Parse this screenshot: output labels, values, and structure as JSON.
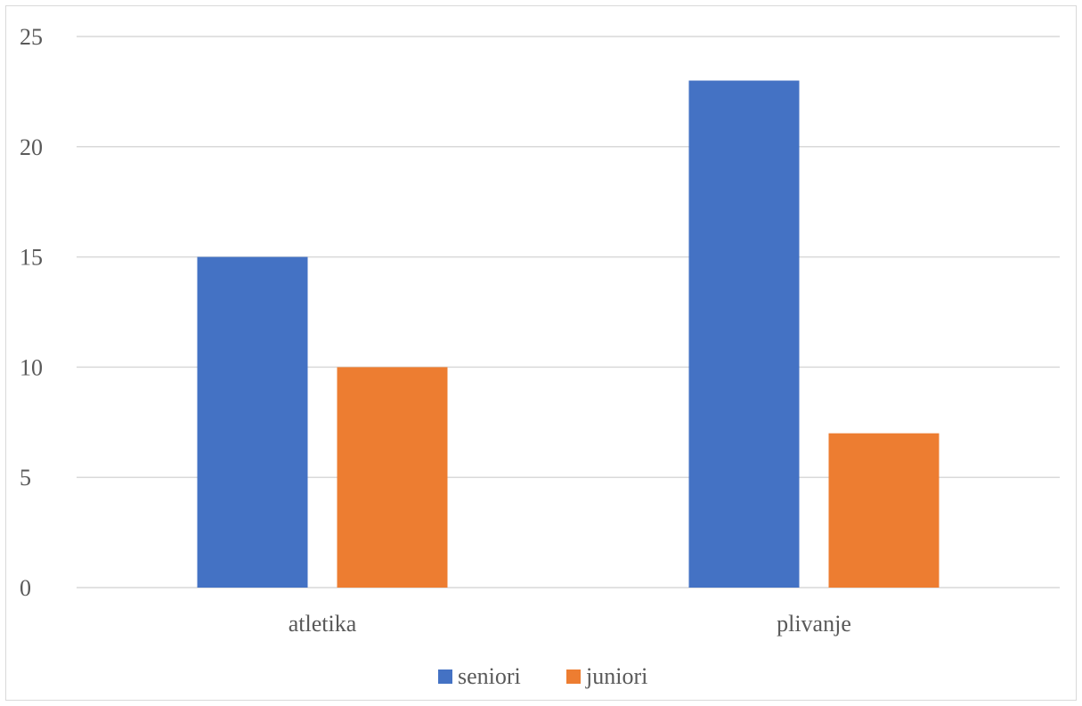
{
  "chart_data": {
    "type": "bar",
    "categories": [
      "atletika",
      "plivanje"
    ],
    "series": [
      {
        "name": "seniori",
        "values": [
          15,
          23
        ],
        "color": "#4472c4"
      },
      {
        "name": "juniori",
        "values": [
          10,
          7
        ],
        "color": "#ed7d31"
      }
    ],
    "ylim": [
      0,
      25
    ],
    "yticks": [
      0,
      5,
      10,
      15,
      20,
      25
    ],
    "grid": true,
    "legend_position": "bottom",
    "gridline_color": "#d9d9d9"
  }
}
